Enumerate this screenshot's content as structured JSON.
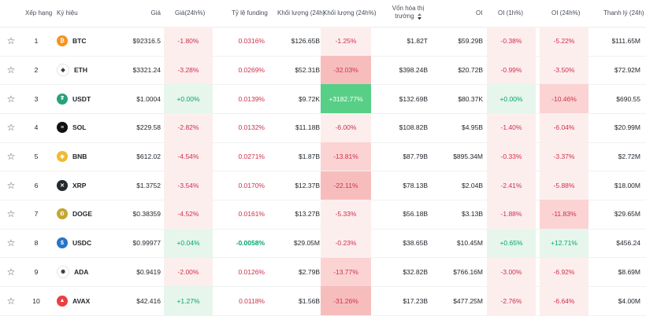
{
  "headers": {
    "rank": "Xếp hạng",
    "symbol": "Ký hiệu",
    "price": "Giá",
    "change": "Giá(24h%)",
    "funding": "Tỷ lệ funding",
    "volume": "Khối lượng (24h)",
    "volume_change": "Khối lượng (24h%)",
    "mcap_line1": "Vốn hóa thị",
    "mcap_line2": "trường",
    "oi": "OI",
    "oi_1h": "OI (1h%)",
    "oi_24h": "OI (24h%)",
    "liq": "Thanh lý (24h)"
  },
  "colors": {
    "neg_text": "#cf304a",
    "pos_text": "#03a66d",
    "neg_bg_light": "#fdeeee",
    "neg_bg_mid": "#fbd3d3",
    "neg_bg_strong": "#f7bdbd",
    "pos_bg_light": "#e6f6ec",
    "pos_bg_strong": "#58cf86"
  },
  "rows": [
    {
      "star": "☆",
      "rank": "1",
      "symbol": "BTC",
      "icon": "bitcoin-icon",
      "icon_color": "#f7931a",
      "icon_glyph": "₿",
      "price": "$92316.5",
      "change": "-1.80%",
      "funding": "0.0316%",
      "volume": "$126.65B",
      "volume_change": "-1.25%",
      "mcap": "$1.82T",
      "oi": "$59.29B",
      "oi_1h": "-0.38%",
      "oi_24h": "-5.22%",
      "liq": "$111.65M"
    },
    {
      "star": "☆",
      "rank": "2",
      "symbol": "ETH",
      "icon": "ethereum-icon",
      "icon_color": "#ffffff",
      "icon_glyph": "◆",
      "price": "$3321.24",
      "change": "-3.28%",
      "funding": "0.0269%",
      "volume": "$52.31B",
      "volume_change": "-32.03%",
      "mcap": "$398.24B",
      "oi": "$20.72B",
      "oi_1h": "-0.99%",
      "oi_24h": "-3.50%",
      "liq": "$72.92M"
    },
    {
      "star": "☆",
      "rank": "3",
      "symbol": "USDT",
      "icon": "tether-icon",
      "icon_color": "#26a17b",
      "icon_glyph": "₮",
      "price": "$1.0004",
      "change": "+0.00%",
      "funding": "0.0139%",
      "volume": "$9.72K",
      "volume_change": "+3182.77%",
      "mcap": "$132.69B",
      "oi": "$80.37K",
      "oi_1h": "+0.00%",
      "oi_24h": "-10.46%",
      "liq": "$690.55"
    },
    {
      "star": "☆",
      "rank": "4",
      "symbol": "SOL",
      "icon": "solana-icon",
      "icon_color": "#111111",
      "icon_glyph": "≡",
      "price": "$229.58",
      "change": "-2.82%",
      "funding": "0.0132%",
      "volume": "$11.18B",
      "volume_change": "-6.00%",
      "mcap": "$108.82B",
      "oi": "$4.95B",
      "oi_1h": "-1.40%",
      "oi_24h": "-6.04%",
      "liq": "$20.99M"
    },
    {
      "star": "☆",
      "rank": "5",
      "symbol": "BNB",
      "icon": "bnb-icon",
      "icon_color": "#f3ba2f",
      "icon_glyph": "◈",
      "price": "$612.02",
      "change": "-4.54%",
      "funding": "0.0271%",
      "volume": "$1.87B",
      "volume_change": "-13.81%",
      "mcap": "$87.79B",
      "oi": "$895.34M",
      "oi_1h": "-0.33%",
      "oi_24h": "-3.37%",
      "liq": "$2.72M"
    },
    {
      "star": "☆",
      "rank": "6",
      "symbol": "XRP",
      "icon": "xrp-icon",
      "icon_color": "#23292f",
      "icon_glyph": "✕",
      "price": "$1.3752",
      "change": "-3.54%",
      "funding": "0.0170%",
      "volume": "$12.37B",
      "volume_change": "-22.11%",
      "mcap": "$78.13B",
      "oi": "$2.04B",
      "oi_1h": "-2.41%",
      "oi_24h": "-5.88%",
      "liq": "$18.00M"
    },
    {
      "star": "☆",
      "rank": "7",
      "symbol": "DOGE",
      "icon": "dogecoin-icon",
      "icon_color": "#c2a633",
      "icon_glyph": "Ð",
      "price": "$0.38359",
      "change": "-4.52%",
      "funding": "0.0161%",
      "volume": "$13.27B",
      "volume_change": "-5.33%",
      "mcap": "$56.18B",
      "oi": "$3.13B",
      "oi_1h": "-1.88%",
      "oi_24h": "-11.83%",
      "liq": "$29.65M"
    },
    {
      "star": "☆",
      "rank": "8",
      "symbol": "USDC",
      "icon": "usdc-icon",
      "icon_color": "#2775ca",
      "icon_glyph": "$",
      "price": "$0.99977",
      "change": "+0.04%",
      "funding": "-0.0058%",
      "volume": "$29.05M",
      "volume_change": "-0.23%",
      "mcap": "$38.65B",
      "oi": "$10.45M",
      "oi_1h": "+0.65%",
      "oi_24h": "+12.71%",
      "liq": "$456.24"
    },
    {
      "star": "☆",
      "rank": "9",
      "symbol": "ADA",
      "icon": "cardano-icon",
      "icon_color": "#ffffff",
      "icon_glyph": "✺",
      "price": "$0.9419",
      "change": "-2.00%",
      "funding": "0.0126%",
      "volume": "$2.79B",
      "volume_change": "-13.77%",
      "mcap": "$32.82B",
      "oi": "$766.16M",
      "oi_1h": "-3.00%",
      "oi_24h": "-6.92%",
      "liq": "$8.69M"
    },
    {
      "star": "☆",
      "rank": "10",
      "symbol": "AVAX",
      "icon": "avalanche-icon",
      "icon_color": "#e84142",
      "icon_glyph": "▲",
      "price": "$42.416",
      "change": "+1.27%",
      "funding": "0.0118%",
      "volume": "$1.56B",
      "volume_change": "-31.26%",
      "mcap": "$17.23B",
      "oi": "$477.25M",
      "oi_1h": "-2.76%",
      "oi_24h": "-6.64%",
      "liq": "$4.00M"
    }
  ]
}
